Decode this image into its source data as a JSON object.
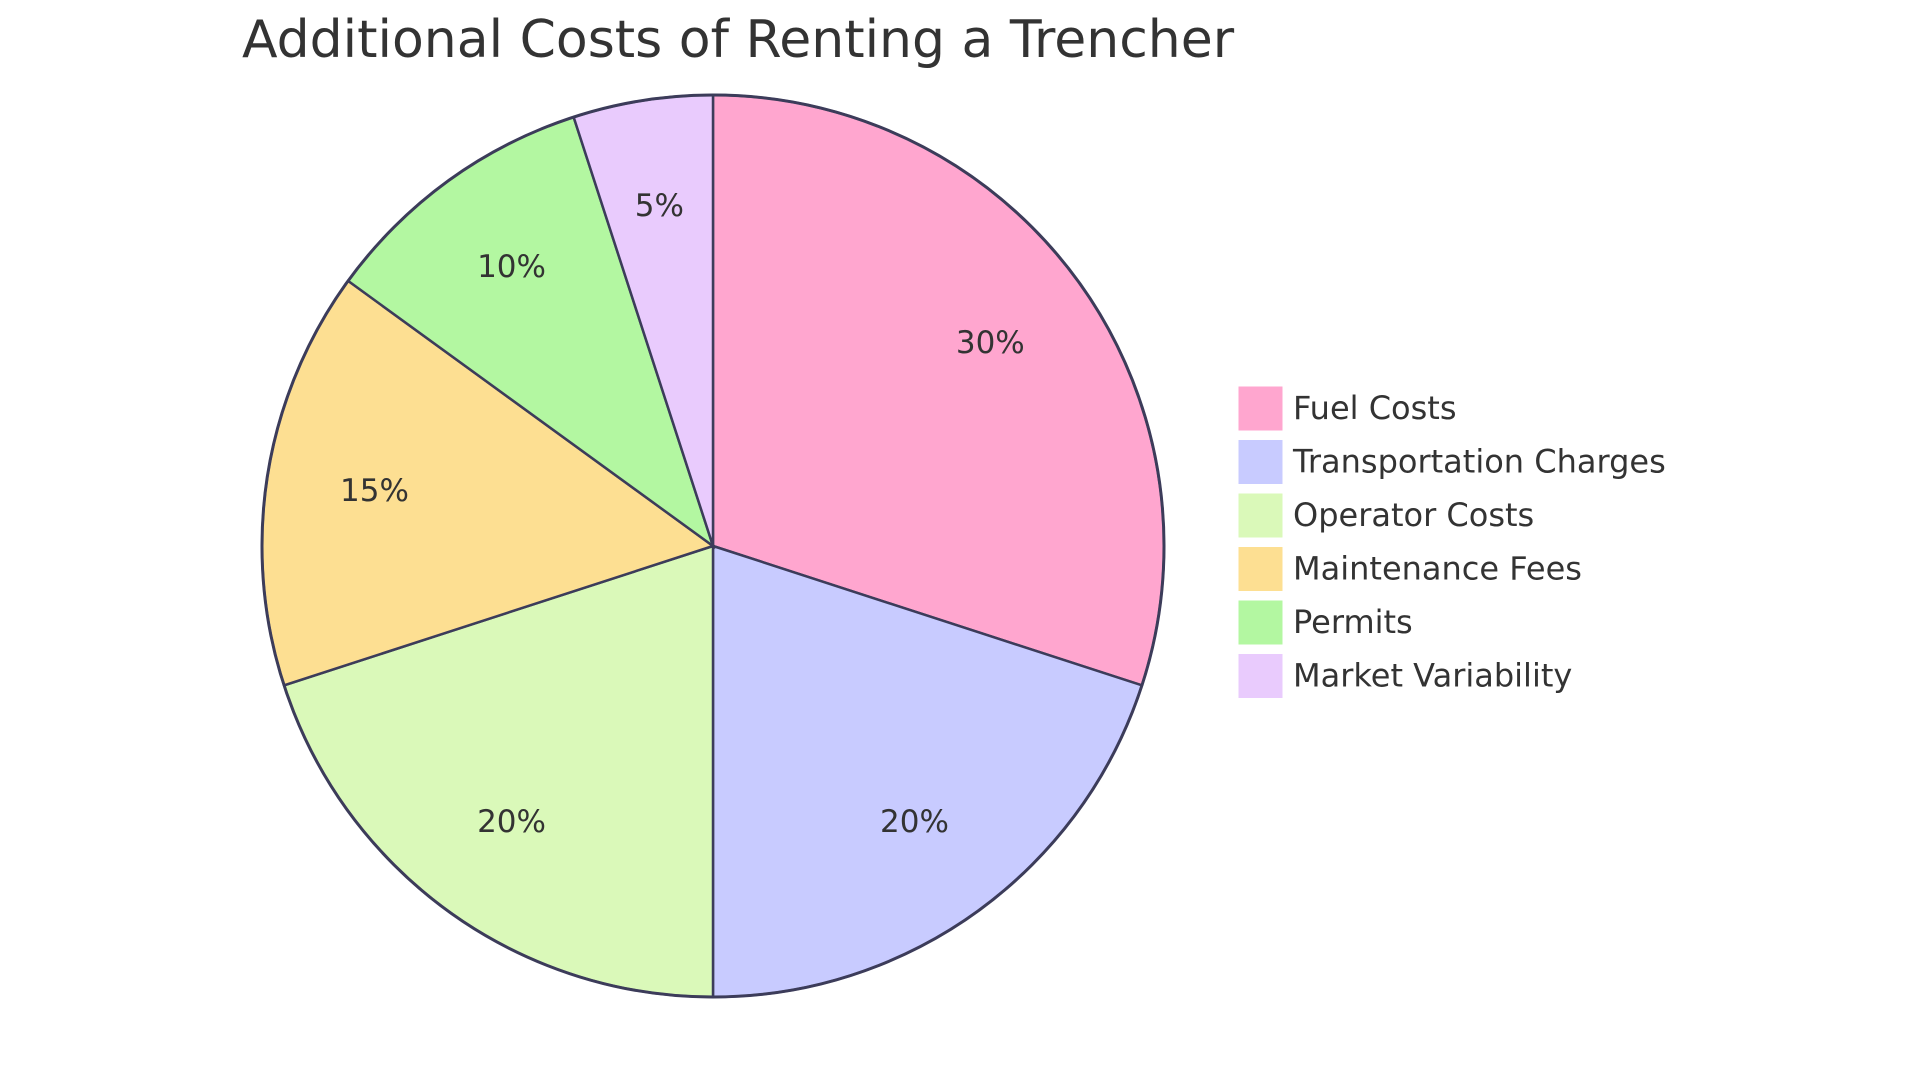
{
  "chart_data": {
    "type": "pie",
    "title": "Additional Costs of Renting a Trencher",
    "categories": [
      "Fuel Costs",
      "Transportation Charges",
      "Operator Costs",
      "Maintenance Fees",
      "Permits",
      "Market Variability"
    ],
    "values": [
      30,
      20,
      20,
      15,
      10,
      5
    ],
    "value_labels": [
      "30%",
      "20%",
      "20%",
      "15%",
      "10%",
      "5%"
    ],
    "colors": [
      "#ffa6cf",
      "#c8cbff",
      "#daf9b9",
      "#fddf92",
      "#b3f7a1",
      "#e9cbfd"
    ],
    "legend": "right"
  }
}
